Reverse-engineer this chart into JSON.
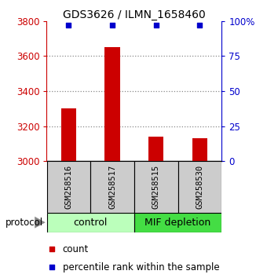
{
  "title": "GDS3626 / ILMN_1658460",
  "samples": [
    "GSM258516",
    "GSM258517",
    "GSM258515",
    "GSM258530"
  ],
  "bar_values": [
    3300,
    3650,
    3140,
    3130
  ],
  "dot_values": [
    3775,
    3775,
    3775,
    3775
  ],
  "ylim": [
    3000,
    3800
  ],
  "left_yticks": [
    3000,
    3200,
    3400,
    3600,
    3800
  ],
  "right_yticks": [
    0,
    25,
    50,
    75,
    100
  ],
  "right_ylabels": [
    "0",
    "25",
    "50",
    "75",
    "100%"
  ],
  "bar_color": "#cc0000",
  "dot_color": "#0000cc",
  "groups": [
    {
      "label": "control",
      "color": "#bbffbb"
    },
    {
      "label": "MIF depletion",
      "color": "#44dd44"
    }
  ],
  "protocol_label": "protocol",
  "legend_count_label": "count",
  "legend_pct_label": "percentile rank within the sample",
  "grid_color": "#888888",
  "bar_bottom": 3000,
  "bar_width": 0.35,
  "sample_box_color": "#cccccc",
  "background_color": "#ffffff"
}
